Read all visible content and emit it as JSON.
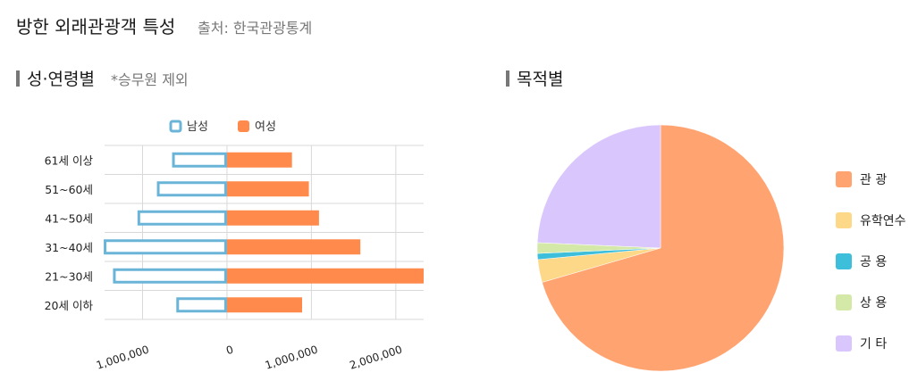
{
  "header": {
    "title": "방한 외래관광객 특성",
    "source": "출처: 한국관광통계"
  },
  "sections": {
    "left": {
      "label": "성·연령별",
      "note": "*승무원 제외"
    },
    "right": {
      "label": "목적별"
    }
  },
  "colors": {
    "male_outline": "#6ab4d8",
    "female_fill": "#ff8a4c",
    "grid": "#d9d9d9"
  },
  "chart_data": [
    {
      "type": "bar",
      "orientation": "horizontal",
      "layout": "population-pyramid",
      "categories": [
        "61세 이상",
        "51~60세",
        "41~50세",
        "31~40세",
        "21~30세",
        "20세 이하"
      ],
      "series": [
        {
          "name": "남성",
          "values": [
            650000,
            830000,
            1060000,
            1460000,
            1350000,
            600000
          ],
          "color": "#6ab4d8",
          "style": "outline"
        },
        {
          "name": "여성",
          "values": [
            770000,
            970000,
            1090000,
            1580000,
            2330000,
            890000
          ],
          "color": "#ff8a4c",
          "style": "filled"
        }
      ],
      "xticks": [
        -1000000,
        0,
        1000000,
        2000000
      ],
      "xtick_labels": [
        "1,000,000",
        "0",
        "1,000,000",
        "2,000,000"
      ],
      "xlim": [
        -1450000,
        2330000
      ],
      "legend_position": "top",
      "grid": true
    },
    {
      "type": "pie",
      "categories": [
        "관 광",
        "유학연수",
        "공 용",
        "상 용",
        "기 타"
      ],
      "values": [
        70.5,
        3.0,
        0.8,
        1.4,
        24.3
      ],
      "colors": [
        "#ffa371",
        "#fdd889",
        "#3dbfdc",
        "#d4e9a8",
        "#d9c6fc"
      ],
      "legend_position": "right"
    }
  ]
}
